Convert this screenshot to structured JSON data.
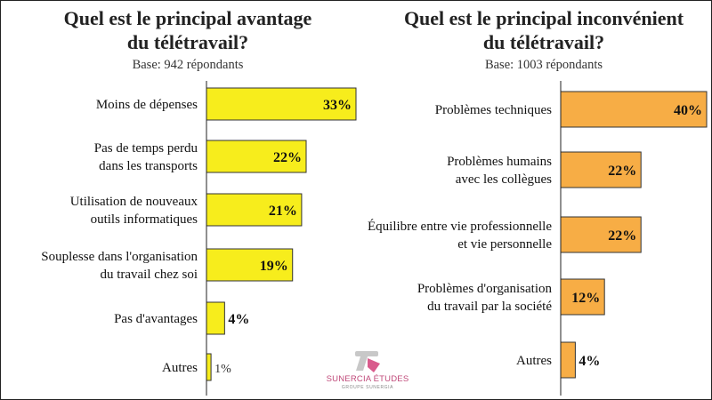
{
  "chart_data": [
    {
      "type": "bar",
      "orientation": "horizontal",
      "title_line1": "Quel est le principal avantage",
      "title_line2": "du télétravail?",
      "subtitle": "Base: 942 répondants",
      "categories": [
        [
          "Moins de dépenses"
        ],
        [
          "Pas de temps perdu",
          "dans les transports"
        ],
        [
          "Utilisation de nouveaux",
          "outils informatiques"
        ],
        [
          "Souplesse dans l'organisation",
          "du travail chez soi"
        ],
        [
          "Pas d'avantages"
        ],
        [
          "Autres"
        ]
      ],
      "values": [
        33,
        22,
        21,
        19,
        4,
        1
      ],
      "labels": [
        "33%",
        "22%",
        "21%",
        "19%",
        "4%",
        "1%"
      ],
      "bar_color": "#f7ed1c",
      "xlim": [
        0,
        33
      ],
      "grid": false,
      "legend": "none"
    },
    {
      "type": "bar",
      "orientation": "horizontal",
      "title_line1": "Quel est le principal inconvénient",
      "title_line2": "du télétravail?",
      "subtitle": "Base: 1003 répondants",
      "categories": [
        [
          "Problèmes techniques"
        ],
        [
          "Problèmes humains",
          "avec les collègues"
        ],
        [
          "Équilibre entre vie professionnelle",
          "et vie personnelle"
        ],
        [
          "Problèmes d'organisation",
          "du travail par la société"
        ],
        [
          "Autres"
        ]
      ],
      "values": [
        40,
        22,
        22,
        12,
        4
      ],
      "labels": [
        "40%",
        "22%",
        "22%",
        "12%",
        "4%"
      ],
      "bar_color": "#f7ad45",
      "xlim": [
        0,
        40
      ],
      "grid": false,
      "legend": "none"
    }
  ],
  "logo": {
    "name": "SUNERCIA ÉTUDES",
    "sub": "GROUPE SUNERGIA",
    "mark_colors": [
      "#c8c8c8",
      "#d95b8c"
    ]
  }
}
